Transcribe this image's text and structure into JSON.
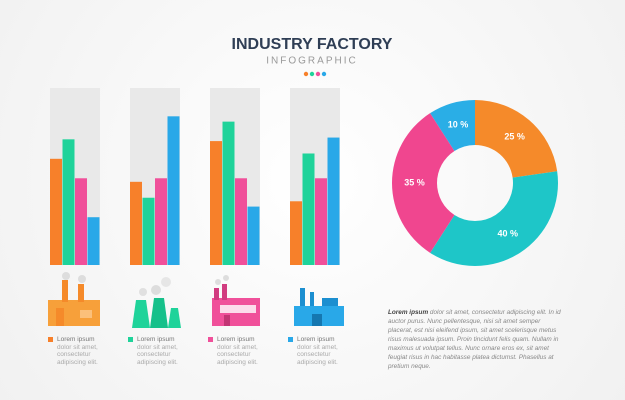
{
  "chart_data": [
    {
      "type": "bar",
      "title": "INDUSTRY FACTORY",
      "subtitle": "INFOGRAPHIC",
      "categories": [
        null,
        null,
        null,
        null
      ],
      "ylim": [
        0,
        100
      ],
      "series": [
        {
          "name": "Lorem ipsum",
          "description": "dolor sit amet, consectetur adipiscing elit.",
          "color": "#f7802a",
          "values": [
            60,
            47,
            70,
            36
          ]
        },
        {
          "name": "Lorem ipsum",
          "description": "dolor sit amet, consectetur adipiscing elit.",
          "color": "#1fd39a",
          "values": [
            71,
            38,
            81,
            63
          ]
        },
        {
          "name": "Lorem ipsum",
          "description": "dolor sit amet, consectetur adipiscing elit.",
          "color": "#f0509a",
          "values": [
            49,
            49,
            49,
            49
          ]
        },
        {
          "name": "Lorem ipsum",
          "description": "dolor sit amet, consectetur adipiscing elit.",
          "color": "#29a8e8",
          "values": [
            27,
            84,
            33,
            72
          ]
        }
      ]
    },
    {
      "type": "donut",
      "values": [
        25,
        40,
        35,
        10
      ],
      "value_labels": [
        "25 %",
        "40 %",
        "35 %",
        "10 %"
      ],
      "colors": [
        "#f58a2a",
        "#1ec6c8",
        "#f0468f",
        "#2aaee6"
      ]
    }
  ],
  "note": {
    "lead": "Lorem ipsum",
    "body": "dolor sit amet, consectetur adipiscing elit. In id auctor purus. Nunc pellentesque, nisi sit amet semper placerat, est nisi eleifend ipsum, sit amet scelerisque metus risus malesuada ipsum. Proin tincidunt felis quam. Nullam in maximus ut volutpat tellus. Nunc ornare eros ex, sit amet feugiat risus in hac habitasse platea dictumst. Phasellus at pretium neque."
  }
}
